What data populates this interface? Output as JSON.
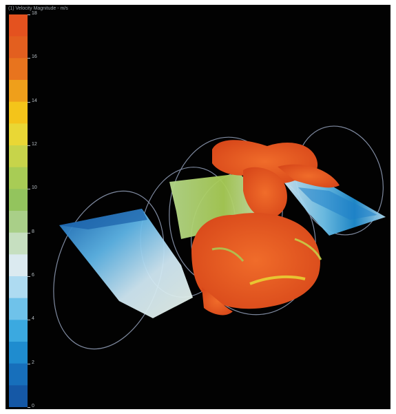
{
  "figure": {
    "title": "(1) Velocity Magnitude - m/s"
  },
  "colorbar": {
    "ticks": [
      "18",
      "16",
      "14",
      "12",
      "10",
      "8",
      "6",
      "4",
      "2",
      "0"
    ],
    "colors_top_to_bottom": [
      "#e4521f",
      "#e35f1f",
      "#e8741e",
      "#ef9f1b",
      "#f4c41a",
      "#e9d735",
      "#c7d44a",
      "#a8cc55",
      "#93c45d",
      "#a9cf88",
      "#c6dfc0",
      "#dbeaf0",
      "#aedbf1",
      "#6fc2ea",
      "#3ba9e0",
      "#1f8ccf",
      "#176fbb",
      "#1558a6"
    ]
  },
  "scene": {
    "content": "3D CFD velocity visualization of a multi-stage turbine with blade surfaces and isosurfaces",
    "accent_colors": {
      "blade_blue": "#1f78c8",
      "blade_light": "#cfe8f5",
      "blade_green": "#a8cc55",
      "isosurface_orange": "#ec5a25",
      "outline_grey": "#7f8aa0"
    }
  }
}
